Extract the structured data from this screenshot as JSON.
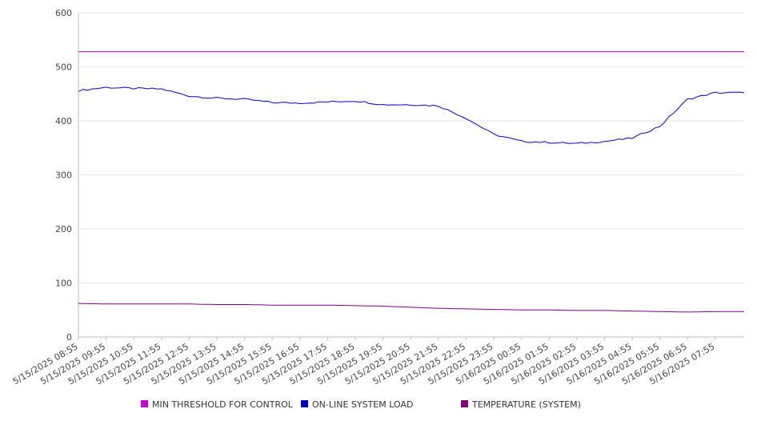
{
  "chart_data": {
    "type": "line",
    "title": "",
    "xlabel": "",
    "ylabel": "",
    "ylim": [
      0,
      600
    ],
    "yticks": [
      0,
      100,
      200,
      300,
      400,
      500,
      600
    ],
    "grid": true,
    "legend_position": "bottom",
    "x": [
      "5/15/2025 08:55",
      "5/15/2025 09:55",
      "5/15/2025 10:55",
      "5/15/2025 11:55",
      "5/15/2025 12:55",
      "5/15/2025 13:55",
      "5/15/2025 14:55",
      "5/15/2025 15:55",
      "5/15/2025 16:55",
      "5/15/2025 17:55",
      "5/15/2025 18:55",
      "5/15/2025 19:55",
      "5/15/2025 20:55",
      "5/15/2025 21:55",
      "5/15/2025 22:55",
      "5/15/2025 23:55",
      "5/16/2025 00:55",
      "5/16/2025 01:55",
      "5/16/2025 02:55",
      "5/16/2025 03:55",
      "5/16/2025 04:55",
      "5/16/2025 05:55",
      "5/16/2025 06:55",
      "5/16/2025 07:55"
    ],
    "series": [
      {
        "name": "MIN THRESHOLD FOR CONTROL",
        "color": "#cc00cc",
        "values": [
          528,
          528,
          528,
          528,
          528,
          528,
          528,
          528,
          528,
          528,
          528,
          528,
          528,
          528,
          528,
          528,
          528,
          528,
          528,
          528,
          528,
          528,
          528,
          528
        ]
      },
      {
        "name": "ON-LINE SYSTEM LOAD",
        "color": "#0000cc",
        "values": [
          456,
          462,
          460,
          459,
          446,
          442,
          440,
          434,
          433,
          435,
          437,
          430,
          430,
          428,
          405,
          375,
          362,
          360,
          358,
          362,
          368,
          390,
          440,
          452
        ]
      },
      {
        "name": "TEMPERATURE (SYSTEM)",
        "color": "#800080",
        "values": [
          62,
          61,
          61,
          61,
          61,
          60,
          60,
          59,
          59,
          59,
          58,
          57,
          55,
          53,
          52,
          51,
          50,
          50,
          49,
          49,
          48,
          47,
          46,
          47
        ]
      }
    ]
  }
}
